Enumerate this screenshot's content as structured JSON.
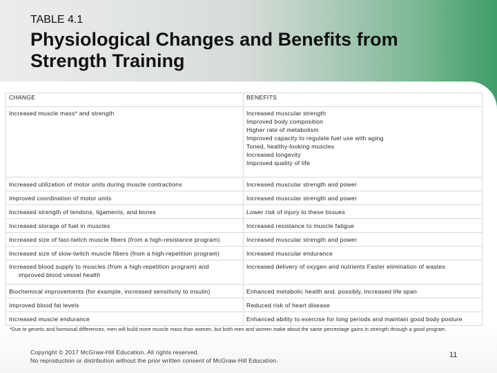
{
  "header": {
    "table_label": "TABLE 4.1",
    "title": "Physiological Changes and Benefits from Strength Training"
  },
  "table": {
    "columns": [
      "CHANGE",
      "BENEFITS"
    ],
    "rows": [
      {
        "change": "Increased muscle mass* and strength",
        "benefits": [
          "Increased muscular strength",
          "Improved body composition",
          "Higher rate of metabolism",
          "Improved capacity to regulate fuel use with aging",
          "Toned, healthy-looking muscles",
          "Increased longevity",
          "Improved quality of life"
        ]
      },
      {
        "change": "Increased utilization of motor units during muscle contractions",
        "benefits": [
          "Increased muscular strength and power"
        ]
      },
      {
        "change": "Improved coordination of motor units",
        "benefits": [
          "Increased muscular strength and power"
        ]
      },
      {
        "change": "Increased strength of tendons, ligaments, and bones",
        "benefits": [
          "Lower risk of injury to these tissues"
        ]
      },
      {
        "change": "Increased storage of fuel in muscles",
        "benefits": [
          "Increased resistance to muscle fatigue"
        ]
      },
      {
        "change": "Increased size of fast-twitch muscle fibers (from a high-resistance program)",
        "benefits": [
          "Increased muscular strength and power"
        ]
      },
      {
        "change": "Increased size of slow-twitch muscle fibers (from a high-repetition program)",
        "benefits": [
          "Increased muscular endurance"
        ]
      },
      {
        "change": "Increased blood supply to muscles (from a high-repetition program) and",
        "change_cont": "improved blood vessel health",
        "benefits": [
          "Increased delivery of oxygen and nutrients Faster elimination of wastes"
        ]
      },
      {
        "change": "Biochemical improvements (for example, increased sensitivity to insulin)",
        "benefits": [
          "Enhanced metabolic health and. possibly, increased life span"
        ]
      },
      {
        "change": "Improved blood fat levels",
        "benefits": [
          "Reduced risk of heart disease"
        ]
      },
      {
        "change": "Increased muscle endurance",
        "benefits": [
          "Enhanced ability to exercise for long periods and maintain good body posture"
        ]
      }
    ]
  },
  "footnote": "*Due to genetic and hormonal differences, men will build more muscle mass than women, but both men and women make about the same percentage gains in strength through a good program.",
  "copyright": {
    "line1": "Copyright © 2017 McGraw-Hill Education. All rights reserved.",
    "line2": "No reproduction or distribution without the prior written consent of McGraw-Hill Education."
  },
  "page_number": "11"
}
